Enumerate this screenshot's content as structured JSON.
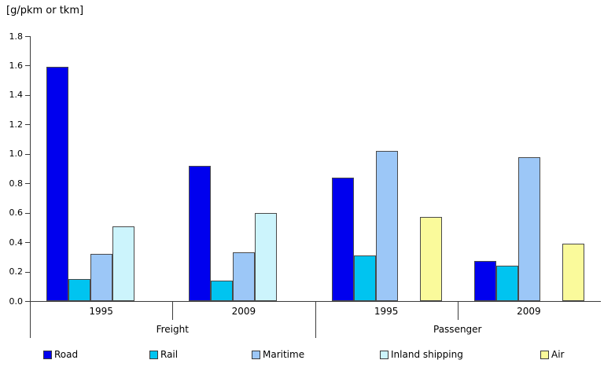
{
  "chart_data": {
    "type": "bar",
    "unit_label": "[g/pkm or tkm]",
    "ylim": [
      0,
      1.8
    ],
    "ytick_step": 0.2,
    "ytick_labels": [
      "0.0",
      "0.2",
      "0.4",
      "0.6",
      "0.8",
      "1.0",
      "1.2",
      "1.4",
      "1.6",
      "1.8"
    ],
    "grid": "off",
    "legend_position": "bottom",
    "groups": [
      {
        "period": "1995",
        "category": "Freight"
      },
      {
        "period": "2009",
        "category": "Freight"
      },
      {
        "period": "1995",
        "category": "Passenger"
      },
      {
        "period": "2009",
        "category": "Passenger"
      }
    ],
    "category_spans": [
      {
        "label": "Freight",
        "from": 0,
        "to": 2
      },
      {
        "label": "Passenger",
        "from": 2,
        "to": 4
      }
    ],
    "series": [
      {
        "name": "Road",
        "color": "#0000EE",
        "values": [
          1.59,
          0.92,
          0.84,
          0.27
        ]
      },
      {
        "name": "Rail",
        "color": "#00C4F0",
        "values": [
          0.15,
          0.14,
          0.31,
          0.24
        ]
      },
      {
        "name": "Maritime",
        "color": "#9CC7F7",
        "values": [
          0.32,
          0.33,
          1.02,
          0.98
        ]
      },
      {
        "name": "Inland shipping",
        "color": "#CCF4FC",
        "values": [
          0.51,
          0.6,
          null,
          null
        ]
      },
      {
        "name": "Air",
        "color": "#FAFA9B",
        "values": [
          null,
          null,
          0.57,
          0.39
        ]
      }
    ]
  }
}
